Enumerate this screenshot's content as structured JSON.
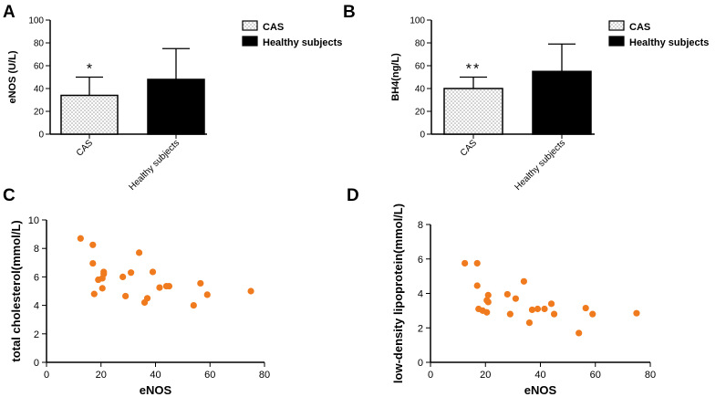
{
  "chart_data": [
    {
      "panel": "A",
      "type": "bar",
      "title": "",
      "ylabel": "eNOS (U/L)",
      "xlabel": "",
      "ylim": [
        0,
        100
      ],
      "yticks": [
        0,
        20,
        40,
        60,
        80,
        100
      ],
      "categories": [
        "CAS",
        "Healthy subjects"
      ],
      "values": [
        34,
        48
      ],
      "errors": [
        16,
        27
      ],
      "significance": [
        "*",
        ""
      ],
      "legend": [
        "CAS",
        "Healthy subjects"
      ],
      "legend_position": "right",
      "colors": {
        "bar_fill": "#000000",
        "dot_pattern": "#9a9a9a"
      }
    },
    {
      "panel": "B",
      "type": "bar",
      "title": "",
      "ylabel": "BH4(ng/L)",
      "xlabel": "",
      "ylim": [
        0,
        100
      ],
      "yticks": [
        0,
        20,
        40,
        60,
        80,
        100
      ],
      "categories": [
        "CAS",
        "Healthy subjects"
      ],
      "values": [
        40,
        55
      ],
      "errors": [
        10,
        24
      ],
      "significance": [
        "**",
        ""
      ],
      "legend": [
        "CAS",
        "Healthy subjects"
      ],
      "legend_position": "right",
      "colors": {
        "bar_fill": "#000000",
        "dot_pattern": "#9a9a9a"
      }
    },
    {
      "panel": "C",
      "type": "scatter",
      "title": "",
      "xlabel": "eNOS",
      "ylabel": "total cholesterol(mmol/L)",
      "xlim": [
        0,
        80
      ],
      "ylim": [
        0,
        10
      ],
      "xticks": [
        0,
        20,
        40,
        60,
        80
      ],
      "yticks": [
        0,
        2,
        4,
        6,
        8,
        10
      ],
      "color": "#f07b1e",
      "x": [
        12.5,
        17,
        17,
        17.5,
        19,
        20.5,
        20.5,
        21,
        21,
        28,
        29,
        31,
        34,
        36,
        37,
        39,
        41.5,
        44,
        45,
        54,
        56.5,
        59,
        75
      ],
      "y": [
        8.7,
        8.25,
        6.95,
        4.8,
        5.8,
        5.9,
        5.2,
        6.2,
        6.35,
        6.0,
        4.65,
        6.3,
        7.7,
        4.2,
        4.5,
        6.35,
        5.25,
        5.35,
        5.35,
        4.0,
        5.55,
        4.75,
        5.0
      ]
    },
    {
      "panel": "D",
      "type": "scatter",
      "title": "",
      "xlabel": "eNOS",
      "ylabel": "low-density lipoprotein(mmol/L)",
      "xlim": [
        0,
        80
      ],
      "ylim": [
        0,
        8
      ],
      "xticks": [
        0,
        20,
        40,
        60,
        80
      ],
      "yticks": [
        0,
        2,
        4,
        6,
        8
      ],
      "color": "#f07b1e",
      "x": [
        12.5,
        17,
        17,
        17.5,
        19,
        20.5,
        20.5,
        21,
        21,
        28,
        29,
        31,
        34,
        36,
        37,
        39,
        41.5,
        44,
        45,
        54,
        56.5,
        59,
        75
      ],
      "y": [
        5.75,
        5.75,
        4.45,
        3.1,
        3.0,
        2.9,
        3.6,
        3.9,
        3.5,
        3.95,
        2.8,
        3.7,
        4.7,
        2.3,
        3.05,
        3.1,
        3.1,
        3.4,
        2.8,
        1.7,
        3.15,
        2.8,
        2.85
      ]
    }
  ],
  "panel_labels": [
    "A",
    "B",
    "C",
    "D"
  ]
}
